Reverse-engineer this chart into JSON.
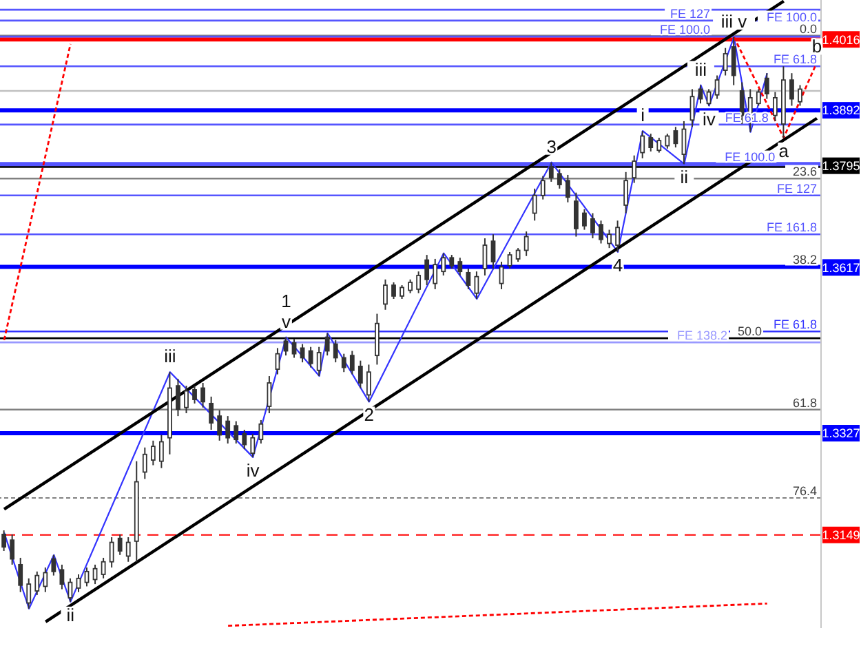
{
  "chart_data": {
    "type": "candlestick",
    "color": "#333333",
    "categories": [
      null,
      null,
      null,
      null,
      null,
      null,
      null,
      null,
      null,
      null,
      null,
      null,
      null,
      null,
      null,
      null,
      null,
      null,
      null,
      null,
      null,
      null,
      null,
      null,
      null,
      null,
      null,
      null,
      null,
      null,
      null,
      null,
      null,
      null,
      null,
      null,
      null,
      null,
      null,
      null,
      null,
      null,
      null,
      null,
      null,
      null,
      null,
      null,
      null,
      null,
      null,
      null,
      null,
      null,
      null,
      null,
      null,
      null,
      null,
      null,
      null,
      null,
      null,
      null,
      null,
      null,
      null,
      null,
      null,
      null,
      null,
      null,
      null,
      null,
      null,
      null,
      null,
      null,
      null,
      null,
      null,
      null,
      null,
      null,
      null,
      null,
      null,
      null,
      null,
      null,
      null,
      null,
      null,
      null,
      null,
      null,
      null,
      null,
      null
    ],
    "ohlc": [
      [
        1.315,
        1.3157,
        1.3121,
        1.3128
      ],
      [
        1.314,
        1.315,
        1.3097,
        1.3107
      ],
      [
        1.3097,
        1.3109,
        1.3049,
        1.3061
      ],
      [
        1.303,
        1.3073,
        1.302,
        1.3063
      ],
      [
        1.3051,
        1.3085,
        1.3044,
        1.3078
      ],
      [
        1.3059,
        1.3092,
        1.3049,
        1.3083
      ],
      [
        1.3107,
        1.3114,
        1.3078,
        1.3085
      ],
      [
        1.3088,
        1.3097,
        1.3054,
        1.3063
      ],
      [
        1.3039,
        1.3073,
        1.3032,
        1.3066
      ],
      [
        1.3056,
        1.308,
        1.3049,
        1.3073
      ],
      [
        1.3066,
        1.3092,
        1.3059,
        1.3085
      ],
      [
        1.3071,
        1.3097,
        1.3063,
        1.309
      ],
      [
        1.308,
        1.3109,
        1.3073,
        1.3102
      ],
      [
        1.3102,
        1.3145,
        1.3092,
        1.3136
      ],
      [
        1.3143,
        1.315,
        1.3114,
        1.3121
      ],
      [
        1.3112,
        1.3145,
        1.3102,
        1.3136
      ],
      [
        1.3138,
        1.3278,
        1.3102,
        1.3242
      ],
      [
        1.3259,
        1.3302,
        1.3247,
        1.329
      ],
      [
        1.328,
        1.3314,
        1.3271,
        1.3304
      ],
      [
        1.3278,
        1.3324,
        1.3266,
        1.3312
      ],
      [
        1.3319,
        1.3434,
        1.329,
        1.3406
      ],
      [
        1.341,
        1.3422,
        1.3357,
        1.3369
      ],
      [
        1.3372,
        1.341,
        1.3362,
        1.3401
      ],
      [
        1.3403,
        1.341,
        1.3379,
        1.3386
      ],
      [
        1.3406,
        1.3415,
        1.3372,
        1.3382
      ],
      [
        1.3379,
        1.3391,
        1.3333,
        1.3345
      ],
      [
        1.3357,
        1.3367,
        1.3314,
        1.3324
      ],
      [
        1.3348,
        1.3357,
        1.3309,
        1.3319
      ],
      [
        1.334,
        1.3348,
        1.3309,
        1.3316
      ],
      [
        1.3326,
        1.3333,
        1.3299,
        1.3307
      ],
      [
        1.3292,
        1.3326,
        1.3285,
        1.3319
      ],
      [
        1.3316,
        1.335,
        1.3309,
        1.3343
      ],
      [
        1.3374,
        1.3427,
        1.3362,
        1.3415
      ],
      [
        1.3439,
        1.3476,
        1.343,
        1.3466
      ],
      [
        1.3488,
        1.3495,
        1.3463,
        1.3471
      ],
      [
        1.3485,
        1.3492,
        1.3459,
        1.3466
      ],
      [
        1.3476,
        1.3483,
        1.3451,
        1.3459
      ],
      [
        1.3471,
        1.3478,
        1.3442,
        1.3449
      ],
      [
        1.3437,
        1.3478,
        1.3427,
        1.3468
      ],
      [
        1.3495,
        1.3502,
        1.3463,
        1.3471
      ],
      [
        1.3483,
        1.349,
        1.3451,
        1.3459
      ],
      [
        1.3459,
        1.3466,
        1.3434,
        1.3442
      ],
      [
        1.3463,
        1.3471,
        1.343,
        1.3437
      ],
      [
        1.3444,
        1.3454,
        1.3406,
        1.3415
      ],
      [
        1.3394,
        1.3447,
        1.3382,
        1.3434
      ],
      [
        1.3463,
        1.3536,
        1.3447,
        1.3519
      ],
      [
        1.3553,
        1.3596,
        1.3543,
        1.3586
      ],
      [
        1.3586,
        1.3591,
        1.3562,
        1.3567
      ],
      [
        1.3567,
        1.3586,
        1.3562,
        1.3582
      ],
      [
        1.3577,
        1.3596,
        1.3572,
        1.3591
      ],
      [
        1.3579,
        1.361,
        1.3572,
        1.3603
      ],
      [
        1.363,
        1.3639,
        1.3586,
        1.3596
      ],
      [
        1.3589,
        1.3632,
        1.3579,
        1.3622
      ],
      [
        1.361,
        1.3642,
        1.3603,
        1.3634
      ],
      [
        1.3634,
        1.3639,
        1.3615,
        1.362
      ],
      [
        1.3627,
        1.3634,
        1.3603,
        1.361
      ],
      [
        1.3608,
        1.3615,
        1.3579,
        1.3586
      ],
      [
        1.3572,
        1.361,
        1.3562,
        1.3601
      ],
      [
        1.3615,
        1.3668,
        1.3603,
        1.3656
      ],
      [
        1.3663,
        1.3675,
        1.3615,
        1.3627
      ],
      [
        1.3589,
        1.3627,
        1.3579,
        1.3618
      ],
      [
        1.362,
        1.3644,
        1.3615,
        1.3639
      ],
      [
        1.3632,
        1.3651,
        1.3627,
        1.3647
      ],
      [
        1.3647,
        1.368,
        1.3637,
        1.3671
      ],
      [
        1.3712,
        1.3755,
        1.3699,
        1.3743
      ],
      [
        1.3743,
        1.3777,
        1.3736,
        1.3769
      ],
      [
        1.3793,
        1.3801,
        1.3767,
        1.3774
      ],
      [
        1.3781,
        1.3789,
        1.3755,
        1.3762
      ],
      [
        1.3769,
        1.3779,
        1.3731,
        1.374
      ],
      [
        1.3733,
        1.3748,
        1.3671,
        1.3685
      ],
      [
        1.3712,
        1.3719,
        1.3683,
        1.369
      ],
      [
        1.3702,
        1.3712,
        1.3668,
        1.3678
      ],
      [
        1.3692,
        1.3699,
        1.3659,
        1.3666
      ],
      [
        1.3659,
        1.3683,
        1.3651,
        1.3675
      ],
      [
        1.3656,
        1.3699,
        1.3644,
        1.3687
      ],
      [
        1.3726,
        1.3784,
        1.3712,
        1.3769
      ],
      [
        1.3774,
        1.3813,
        1.3765,
        1.3803
      ],
      [
        1.3818,
        1.3856,
        1.3808,
        1.3847
      ],
      [
        1.3844,
        1.3851,
        1.382,
        1.3827
      ],
      [
        1.3822,
        1.3844,
        1.3818,
        1.3839
      ],
      [
        1.383,
        1.3851,
        1.3825,
        1.3847
      ],
      [
        1.3856,
        1.3863,
        1.3827,
        1.3834
      ],
      [
        1.3815,
        1.3873,
        1.3798,
        1.3859
      ],
      [
        1.3875,
        1.3929,
        1.3863,
        1.3916
      ],
      [
        1.3929,
        1.3936,
        1.3904,
        1.3912
      ],
      [
        1.3904,
        1.3929,
        1.39,
        1.3924
      ],
      [
        1.3919,
        1.3953,
        1.3912,
        1.3945
      ],
      [
        1.3962,
        1.4001,
        1.3953,
        1.3991
      ],
      [
        1.4003,
        1.402,
        1.3936,
        1.3953
      ],
      [
        1.3926,
        1.3941,
        1.3868,
        1.3883
      ],
      [
        1.3871,
        1.3929,
        1.3854,
        1.3914
      ],
      [
        1.3904,
        1.3929,
        1.39,
        1.3924
      ],
      [
        1.3948,
        1.3957,
        1.3912,
        1.3921
      ],
      [
        1.3883,
        1.3924,
        1.3873,
        1.3914
      ],
      [
        1.3868,
        1.3969,
        1.3844,
        1.3945
      ],
      [
        1.3945,
        1.3957,
        1.39,
        1.3912
      ],
      [
        1.3907,
        1.3936,
        1.39,
        1.3929
      ],
      null,
      null
    ],
    "series": [
      {
        "type": "line",
        "color": "#3333ff",
        "values": [
          1.3153,
          null,
          null,
          1.302,
          null,
          null,
          1.3114,
          null,
          1.3032,
          null,
          null,
          null,
          null,
          null,
          null,
          null,
          null,
          null,
          null,
          null,
          1.3434,
          null,
          null,
          null,
          null,
          null,
          null,
          null,
          null,
          null,
          1.3285,
          null,
          null,
          null,
          1.3495,
          null,
          null,
          null,
          1.3427,
          1.3502,
          null,
          null,
          null,
          null,
          1.3382,
          null,
          null,
          null,
          null,
          null,
          null,
          null,
          null,
          1.3642,
          null,
          null,
          null,
          1.3562,
          null,
          null,
          null,
          null,
          null,
          null,
          null,
          null,
          1.3801,
          null,
          null,
          null,
          null,
          null,
          null,
          null,
          1.3644,
          null,
          null,
          1.3856,
          null,
          null,
          null,
          null,
          1.3798,
          null,
          1.3936,
          1.39,
          null,
          null,
          1.402,
          null,
          1.3854,
          null,
          1.3957,
          null,
          null,
          null,
          null,
          null,
          null
        ]
      },
      {
        "type": "line",
        "color": "#ff0000",
        "line_style": "dotted",
        "values": [
          null,
          null,
          null,
          null,
          null,
          null,
          null,
          null,
          null,
          null,
          null,
          null,
          null,
          null,
          null,
          null,
          null,
          null,
          null,
          null,
          null,
          null,
          null,
          null,
          null,
          null,
          null,
          null,
          null,
          null,
          null,
          null,
          null,
          null,
          null,
          null,
          null,
          null,
          null,
          null,
          null,
          null,
          null,
          null,
          null,
          null,
          null,
          null,
          null,
          null,
          null,
          null,
          null,
          null,
          null,
          null,
          null,
          null,
          null,
          null,
          null,
          null,
          null,
          null,
          null,
          null,
          null,
          null,
          null,
          null,
          null,
          null,
          null,
          null,
          null,
          null,
          null,
          null,
          null,
          null,
          null,
          null,
          null,
          null,
          null,
          null,
          null,
          null,
          1.402,
          null,
          null,
          null,
          null,
          null,
          1.3844,
          null,
          null,
          null,
          1.3976
        ]
      },
      {
        "type": "line",
        "color": "#000000",
        "values": [
          1.3194,
          null,
          null,
          null,
          null,
          null,
          null,
          null,
          null,
          null,
          null,
          null,
          null,
          null,
          null,
          null,
          null,
          null,
          null,
          null,
          null,
          null,
          null,
          null,
          null,
          null,
          null,
          null,
          null,
          null,
          null,
          null,
          null,
          null,
          null,
          null,
          null,
          null,
          null,
          null,
          null,
          null,
          null,
          null,
          null,
          null,
          null,
          null,
          null,
          null,
          null,
          null,
          null,
          null,
          null,
          null,
          null,
          null,
          null,
          null,
          null,
          null,
          null,
          null,
          null,
          null,
          null,
          null,
          null,
          null,
          null,
          null,
          null,
          null,
          null,
          null,
          null,
          null,
          null,
          null,
          null,
          null,
          null,
          null,
          null,
          null,
          null,
          null,
          null,
          null,
          null,
          null,
          null,
          null,
          1.4083,
          null,
          null,
          null,
          null
        ]
      },
      {
        "type": "line",
        "color": "#000000",
        "values": [
          null,
          null,
          null,
          null,
          null,
          1.2997,
          null,
          null,
          null,
          null,
          null,
          null,
          null,
          null,
          null,
          null,
          null,
          null,
          null,
          null,
          null,
          null,
          null,
          null,
          null,
          null,
          null,
          null,
          null,
          null,
          null,
          null,
          null,
          null,
          null,
          null,
          null,
          null,
          null,
          null,
          null,
          null,
          null,
          null,
          null,
          null,
          null,
          null,
          null,
          null,
          null,
          null,
          null,
          null,
          null,
          null,
          null,
          null,
          null,
          null,
          null,
          null,
          null,
          null,
          null,
          null,
          null,
          null,
          null,
          null,
          null,
          null,
          null,
          null,
          null,
          null,
          null,
          null,
          null,
          null,
          null,
          null,
          null,
          null,
          null,
          null,
          null,
          null,
          null,
          null,
          null,
          null,
          null,
          null,
          null,
          null,
          null,
          null,
          1.3878
        ]
      },
      {
        "type": "line",
        "color": "#ff0000",
        "line_style": "dotted",
        "values": [
          1.349,
          null,
          null,
          null,
          null,
          null,
          null,
          null,
          1.4008,
          null,
          null,
          null,
          null,
          null,
          null,
          null,
          null,
          null,
          null,
          null,
          null,
          null,
          null,
          null,
          null,
          null,
          null,
          null,
          null,
          null,
          null,
          null,
          null,
          null,
          null,
          null,
          null,
          null,
          null,
          null,
          null,
          null,
          null,
          null,
          null,
          null,
          null,
          null,
          null,
          null,
          null,
          null,
          null,
          null,
          null,
          null,
          null,
          null,
          null,
          null,
          null,
          null,
          null,
          null,
          null,
          null,
          null,
          null,
          null,
          null,
          null,
          null,
          null,
          null,
          null,
          null,
          null,
          null,
          null,
          null,
          null,
          null,
          null,
          null,
          null,
          null,
          null,
          null,
          null,
          null,
          null,
          null,
          null,
          null,
          null,
          null,
          null,
          null,
          null
        ]
      },
      {
        "type": "line",
        "color": "#ff0000",
        "line_style": "dotted",
        "values": [
          null,
          null,
          null,
          null,
          null,
          null,
          null,
          null,
          null,
          null,
          null,
          null,
          null,
          null,
          null,
          null,
          null,
          null,
          null,
          null,
          null,
          null,
          null,
          null,
          null,
          null,
          null,
          1.299,
          null,
          null,
          null,
          null,
          null,
          null,
          null,
          null,
          null,
          null,
          null,
          null,
          null,
          null,
          null,
          null,
          null,
          null,
          null,
          null,
          null,
          null,
          null,
          null,
          null,
          null,
          null,
          null,
          null,
          null,
          null,
          null,
          null,
          null,
          null,
          null,
          null,
          null,
          null,
          null,
          null,
          null,
          null,
          null,
          null,
          null,
          null,
          null,
          null,
          null,
          null,
          null,
          null,
          null,
          null,
          null,
          null,
          null,
          null,
          null,
          null,
          null,
          null,
          null,
          1.3029,
          null,
          null,
          null,
          null,
          null,
          null
        ]
      }
    ],
    "ylim": [
      1.2986,
      1.4085
    ],
    "yticks": [
      1.3149,
      1.3327,
      1.3617,
      1.3795,
      1.3892,
      1.4016
    ],
    "y2lim": [
      97.9,
      -5.9
    ],
    "tick_labels": "y",
    "ref_lines": [
      {
        "axis": "y",
        "value": 1.4016,
        "color": "#ff0000"
      },
      {
        "axis": "y",
        "value": 1.3892,
        "color": "#0000ff"
      },
      {
        "axis": "y",
        "value": 1.3795,
        "color": "#000000"
      },
      {
        "axis": "y",
        "value": 1.3327,
        "color": "#0000ff"
      },
      {
        "axis": "y",
        "value": 1.3149,
        "color": "#ff0000",
        "line_style": "dashed"
      },
      {
        "axis": "y",
        "value": 1.4068,
        "label": "FE 100.0",
        "color": "#5555ff"
      },
      {
        "axis": "y",
        "value": 1.4049,
        "label": "FE 127",
        "color": "#5555ff"
      },
      {
        "axis": "y2",
        "value": 0,
        "label": "0.0",
        "color": "#808080"
      },
      {
        "axis": "y",
        "value": 1.4021,
        "label": "FE 100.0",
        "color": "#5555ff"
      },
      {
        "axis": "y",
        "value": 1.3969,
        "label": "FE 61.8",
        "color": "#5555ff"
      },
      {
        "axis": "y",
        "value": 1.3926,
        "color": "#c0c0c0"
      },
      {
        "axis": "y",
        "value": 1.3867,
        "label": "FE 61.8",
        "color": "#5555ff"
      },
      {
        "axis": "y",
        "value": 1.3798,
        "label": "FE 100.0",
        "color": "#5555ff"
      },
      {
        "axis": "y2",
        "value": 23.6,
        "label": "23.6",
        "color": "#808080"
      },
      {
        "axis": "y",
        "value": 1.3743,
        "label": "FE 127",
        "color": "#5555ff"
      },
      {
        "axis": "y",
        "value": 1.3675,
        "label": "FE 161.8",
        "color": "#5555ff"
      },
      {
        "axis": "y2",
        "value": 38.2,
        "label": "38.2",
        "color": "#0000ff"
      },
      {
        "axis": "y",
        "value": 1.3505,
        "label": "FE 61.8",
        "color": "#3333ff"
      },
      {
        "axis": "y2",
        "value": 50,
        "label": "50.0",
        "color": "#000000"
      },
      {
        "axis": "y",
        "value": 1.3486,
        "label": "FE 138.2",
        "color": "#9999ff"
      },
      {
        "axis": "y2",
        "value": 61.8,
        "label": "61.8",
        "color": "#808080"
      },
      {
        "axis": "y2",
        "value": 76.4,
        "label": "76.4",
        "color": "#808080",
        "line_style": "dotted"
      }
    ],
    "annotations": [
      {
        "text": "ii",
        "y": 1.3032
      },
      {
        "text": "iii",
        "y": 1.3434
      },
      {
        "text": "iv",
        "y": 1.3285
      },
      {
        "text": "v",
        "y": 1.3495
      },
      {
        "text": "1",
        "y": 1.3495
      },
      {
        "text": "2",
        "y": 1.3382
      },
      {
        "text": "3",
        "y": 1.3801
      },
      {
        "text": "4",
        "y": 1.3644
      },
      {
        "text": "i",
        "y": 1.3856
      },
      {
        "text": "ii",
        "y": 1.3798
      },
      {
        "text": "iii",
        "y": 1.3936
      },
      {
        "text": "iv",
        "y": 1.39
      },
      {
        "text": "iii v",
        "y": 1.402
      },
      {
        "text": "a",
        "y": 1.3844
      },
      {
        "text": "b",
        "y": 1.3976
      }
    ]
  }
}
